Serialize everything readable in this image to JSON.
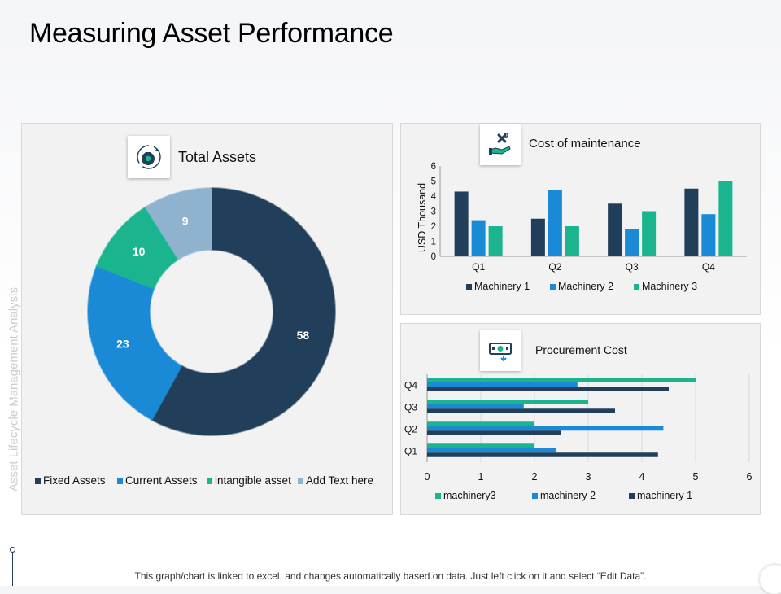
{
  "slide": {
    "title": "Measuring Asset Performance",
    "side_label": "Asset Lifecycle Management Analysis",
    "footer": "This graph/chart is linked to excel, and changes automatically based on data. Just left click on it and select “Edit Data”."
  },
  "colors": {
    "dark_navy": "#213f5a",
    "blue": "#1a8ad6",
    "teal": "#1ab58f",
    "light_blue": "#8fb2cf"
  },
  "icons": [
    "money-bag-icon",
    "tools-hand-icon",
    "cash-icon"
  ],
  "chart_data": [
    {
      "type": "pie",
      "title": "Total Assets",
      "variant": "donut",
      "legend_position": "bottom",
      "labels": [
        "Fixed Assets",
        "Current Assets",
        "intangible asset",
        "Add Text here"
      ],
      "values": [
        58,
        23,
        10,
        9
      ],
      "colors": [
        "#213f5a",
        "#1a8ad6",
        "#1ab58f",
        "#8fb2cf"
      ]
    },
    {
      "type": "bar",
      "title": "Cost of maintenance",
      "categories": [
        "Q1",
        "Q2",
        "Q3",
        "Q4"
      ],
      "series": [
        {
          "name": "Machinery 1",
          "values": [
            4.3,
            2.5,
            3.5,
            4.5
          ],
          "color": "#213f5a"
        },
        {
          "name": "Machinery 2",
          "values": [
            2.4,
            4.4,
            1.8,
            2.8
          ],
          "color": "#1a8ad6"
        },
        {
          "name": "Machinery 3",
          "values": [
            2.0,
            2.0,
            3.0,
            5.0
          ],
          "color": "#1ab58f"
        }
      ],
      "xlabel": "",
      "ylabel": "USD Thousand",
      "ylim": [
        0,
        6
      ],
      "yticks": [
        0,
        1,
        2,
        3,
        4,
        5,
        6
      ],
      "grid": false,
      "legend_position": "bottom"
    },
    {
      "type": "bar",
      "orientation": "horizontal",
      "title": "Procurement Cost",
      "categories": [
        "Q1",
        "Q2",
        "Q3",
        "Q4"
      ],
      "series": [
        {
          "name": "machinery3",
          "values": [
            2.0,
            2.0,
            3.0,
            5.0
          ],
          "color": "#1ab58f"
        },
        {
          "name": "machinery 2",
          "values": [
            2.4,
            4.4,
            1.8,
            2.8
          ],
          "color": "#1a8ad6"
        },
        {
          "name": "machinery 1",
          "values": [
            4.3,
            2.5,
            3.5,
            4.5
          ],
          "color": "#213f5a"
        }
      ],
      "xlabel": "",
      "ylabel": "",
      "xlim": [
        0,
        6
      ],
      "xticks": [
        0,
        1,
        2,
        3,
        4,
        5,
        6
      ],
      "grid": true,
      "legend_position": "bottom"
    }
  ]
}
